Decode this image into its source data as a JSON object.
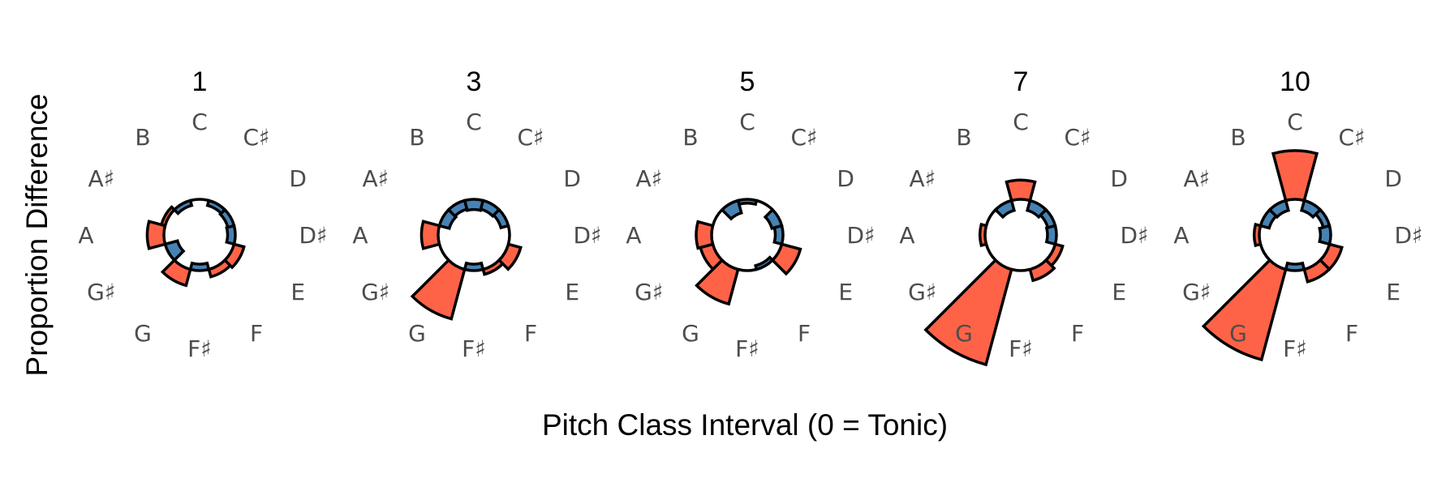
{
  "chart_data": {
    "type": "polar-bar",
    "xlabel": "Pitch Class Interval (0 = Tonic)",
    "ylabel": "Proportion Difference",
    "notes": [
      "C",
      "C♯",
      "D",
      "D♯",
      "E",
      "F",
      "F♯",
      "G",
      "G♯",
      "A",
      "A♯",
      "B"
    ],
    "colors": {
      "positive": "#FF6347",
      "negative": "#4682B4"
    },
    "panels": [
      {
        "title": "1",
        "values": [
          0.0,
          -0.04,
          -0.05,
          -0.06,
          0.08,
          0.06,
          -0.05,
          0.13,
          -0.1,
          0.13,
          0.03,
          -0.04
        ]
      },
      {
        "title": "3",
        "values": [
          -0.08,
          -0.07,
          -0.06,
          0.0,
          0.1,
          0.04,
          -0.05,
          0.4,
          0.0,
          0.13,
          -0.08,
          -0.07
        ]
      },
      {
        "title": "5",
        "values": [
          -0.03,
          0.0,
          -0.08,
          -0.06,
          0.15,
          -0.03,
          0.0,
          0.28,
          0.1,
          0.12,
          0.0,
          -0.1
        ]
      },
      {
        "title": "7",
        "values": [
          0.15,
          -0.08,
          -0.06,
          -0.07,
          0.06,
          0.09,
          0.0,
          0.77,
          0.0,
          0.04,
          0.0,
          -0.08
        ]
      },
      {
        "title": "10",
        "values": [
          0.38,
          -0.08,
          -0.05,
          -0.08,
          0.1,
          0.1,
          -0.05,
          0.73,
          0.0,
          0.04,
          -0.07,
          -0.08
        ]
      }
    ]
  }
}
